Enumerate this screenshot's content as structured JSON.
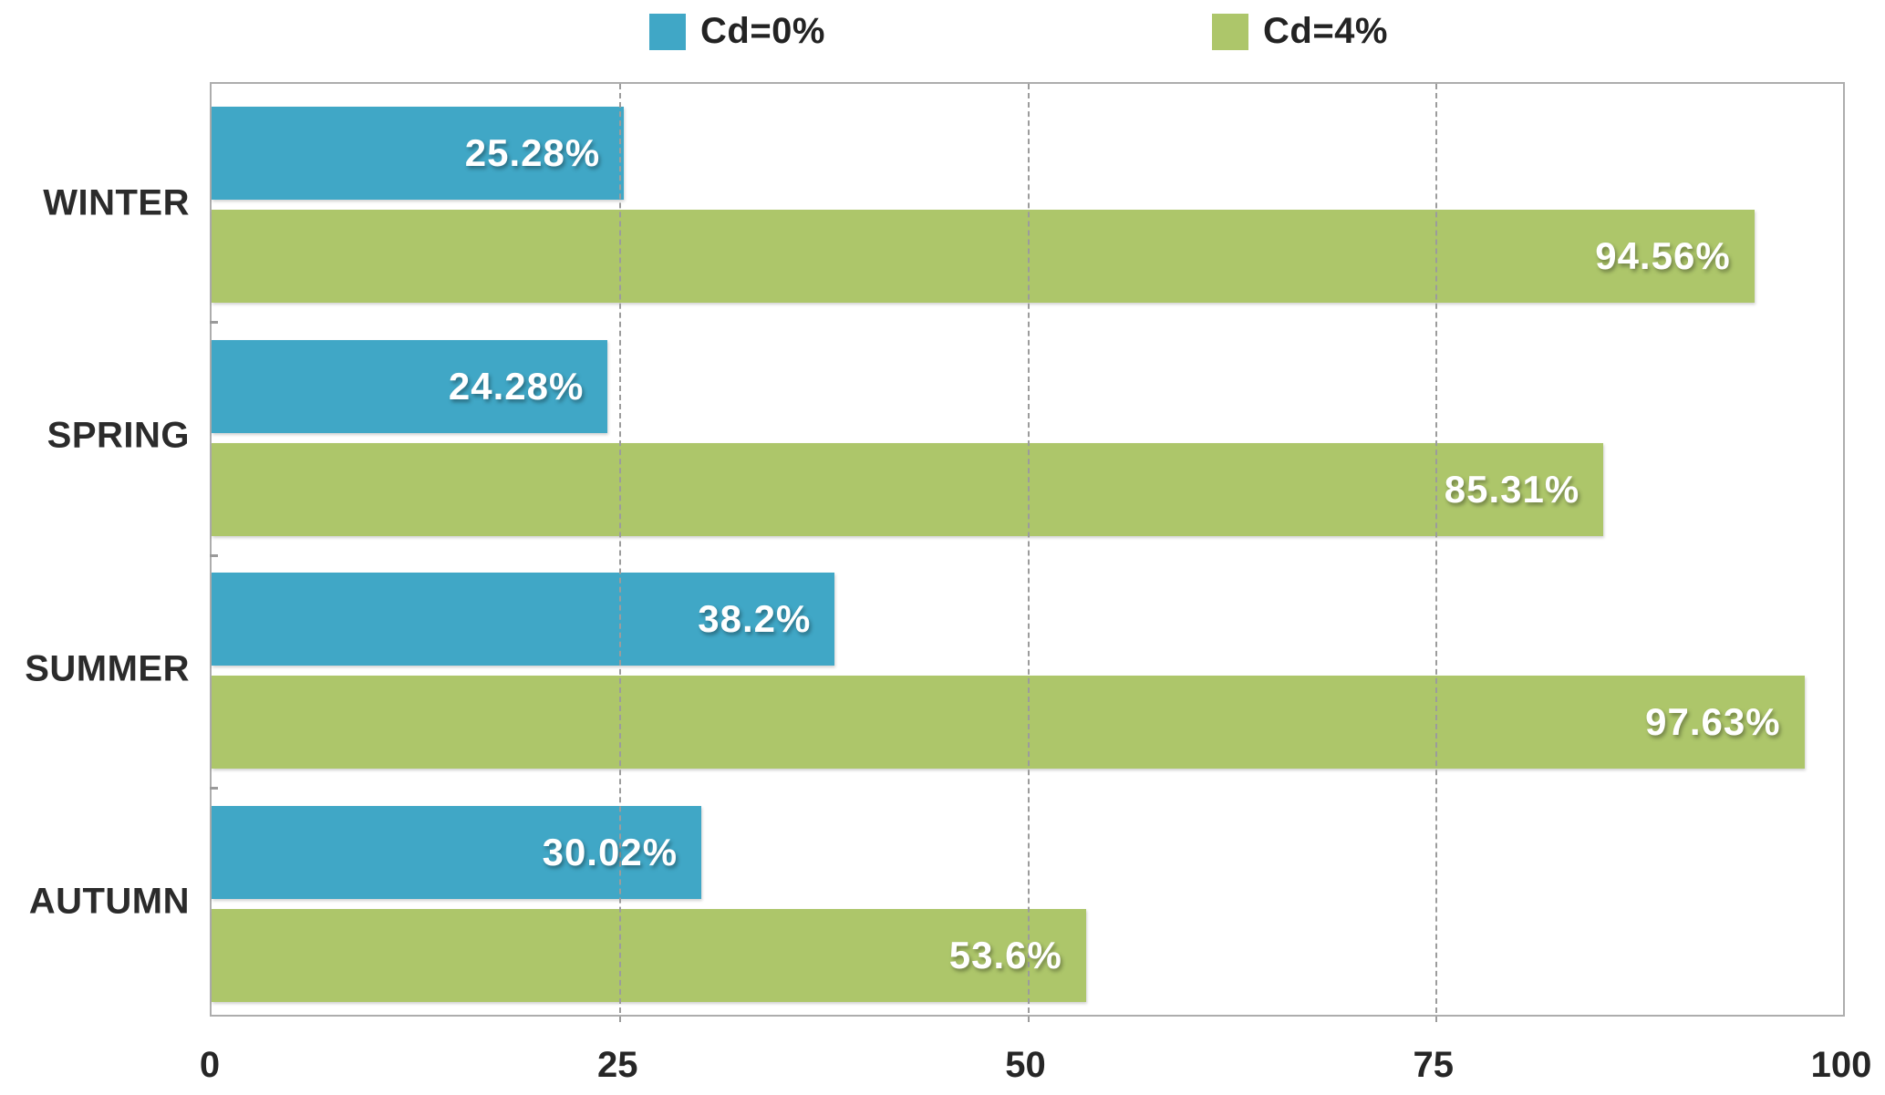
{
  "chart_data": {
    "type": "bar",
    "orientation": "horizontal",
    "title": "",
    "categories": [
      "WINTER",
      "SPRING",
      "SUMMER",
      "AUTUMN"
    ],
    "series": [
      {
        "name": "Cd=0%",
        "color": "#40A7C6",
        "values": [
          25.28,
          24.28,
          38.2,
          30.02
        ],
        "data_labels": [
          "25.28%",
          "24.28%",
          "38.2%",
          "30.02%"
        ]
      },
      {
        "name": "Cd=4%",
        "color": "#ADC66A",
        "values": [
          94.56,
          85.31,
          97.63,
          53.6
        ],
        "data_labels": [
          "94.56%",
          "85.31%",
          "97.63%",
          "53.6%"
        ]
      }
    ],
    "xlabel": "",
    "ylabel": "",
    "xlim": [
      0,
      100
    ],
    "x_ticks": [
      0,
      25,
      50,
      75,
      100
    ],
    "x_tick_labels": [
      "0",
      "25",
      "50",
      "75",
      "100"
    ],
    "grid": {
      "vertical_dashed_at": [
        25,
        50,
        75
      ]
    },
    "legend_position": "top",
    "colors": {
      "grid": "#9c9c9c",
      "plot_border": "#adadad",
      "axis_text": "#262626",
      "category_text": "#2b2b2b",
      "value_text": "#ffffff"
    }
  }
}
